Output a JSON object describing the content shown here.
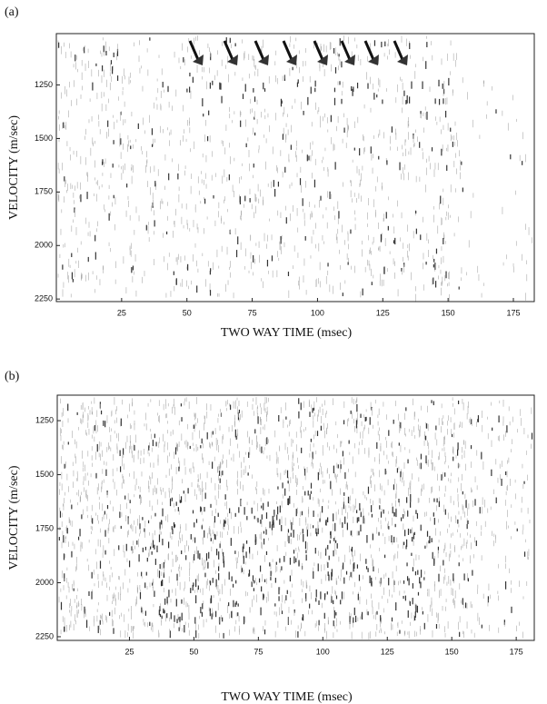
{
  "chart_data": [
    {
      "type": "heatmap",
      "panel": "(a)",
      "xlabel": "TWO WAY TIME  (msec)",
      "ylabel": "VELOCITY  (m/sec)",
      "xlim": [
        0,
        183
      ],
      "ylim": [
        1010,
        2262
      ],
      "xticks": [
        25,
        50,
        75,
        100,
        125,
        150,
        175
      ],
      "yticks": [
        1250,
        1500,
        1750,
        2000,
        2250
      ]
    },
    {
      "type": "heatmap",
      "panel": "(b)",
      "xlabel": "TWO WAY TIME  (msec)",
      "ylabel": "VELOCITY  (m/sec)",
      "xlim": [
        -3,
        182
      ],
      "ylim": [
        1132,
        2267
      ],
      "xticks": [
        25,
        50,
        75,
        100,
        125,
        150,
        175
      ],
      "yticks": [
        1250,
        1500,
        1750,
        2000,
        2250
      ]
    }
  ]
}
